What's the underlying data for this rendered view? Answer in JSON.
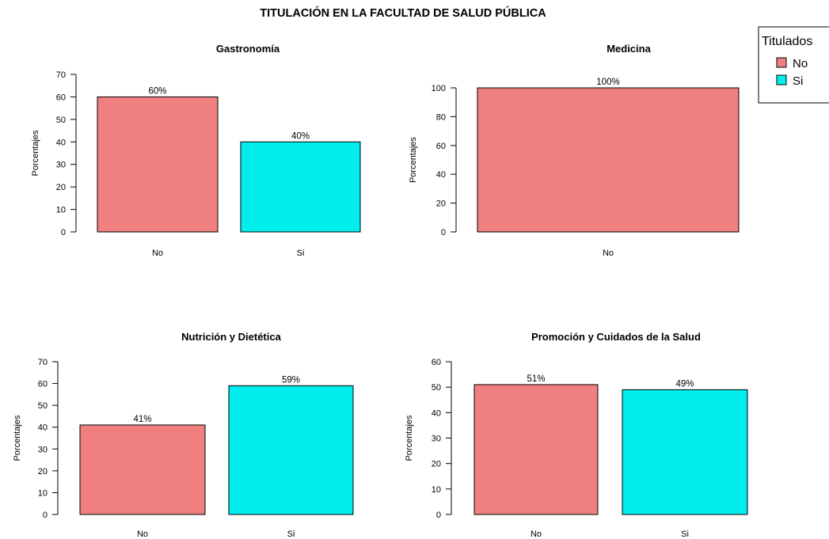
{
  "main_title": "TITULACIÓN EN LA FACULTAD DE SALUD PÚBLICA",
  "legend": {
    "title": "Titulados",
    "items": [
      {
        "label": "No",
        "color": "#F08080"
      },
      {
        "label": "Si",
        "color": "#00EEEE"
      }
    ]
  },
  "colors": {
    "No": "#F08080",
    "Si": "#00EEEE"
  },
  "chart_data": [
    {
      "type": "bar",
      "title": "Gastronomía",
      "categories": [
        "No",
        "Si"
      ],
      "values": [
        60,
        40
      ],
      "data_labels": [
        "60%",
        "40%"
      ],
      "ylabel": "Porcentajes",
      "xlabel": "",
      "ylim": [
        0,
        70
      ],
      "yticks": [
        0,
        10,
        20,
        30,
        40,
        50,
        60,
        70
      ],
      "grid": false
    },
    {
      "type": "bar",
      "title": "Medicina",
      "categories": [
        "No"
      ],
      "values": [
        100
      ],
      "data_labels": [
        "100%"
      ],
      "ylabel": "Porcentajes",
      "xlabel": "",
      "ylim": [
        0,
        100
      ],
      "yticks": [
        0,
        20,
        40,
        60,
        80,
        100
      ],
      "grid": false
    },
    {
      "type": "bar",
      "title": "Nutrición y Dietética",
      "categories": [
        "No",
        "Si"
      ],
      "values": [
        41,
        59
      ],
      "data_labels": [
        "41%",
        "59%"
      ],
      "ylabel": "Porcentajes",
      "xlabel": "",
      "ylim": [
        0,
        70
      ],
      "yticks": [
        0,
        10,
        20,
        30,
        40,
        50,
        60,
        70
      ],
      "grid": false
    },
    {
      "type": "bar",
      "title": "Promoción y Cuidados de la Salud",
      "categories": [
        "No",
        "Si"
      ],
      "values": [
        51,
        49
      ],
      "data_labels": [
        "51%",
        "49%"
      ],
      "ylabel": "Porcentajes",
      "xlabel": "",
      "ylim": [
        0,
        60
      ],
      "yticks": [
        0,
        10,
        20,
        30,
        40,
        50,
        60
      ],
      "grid": false
    }
  ]
}
